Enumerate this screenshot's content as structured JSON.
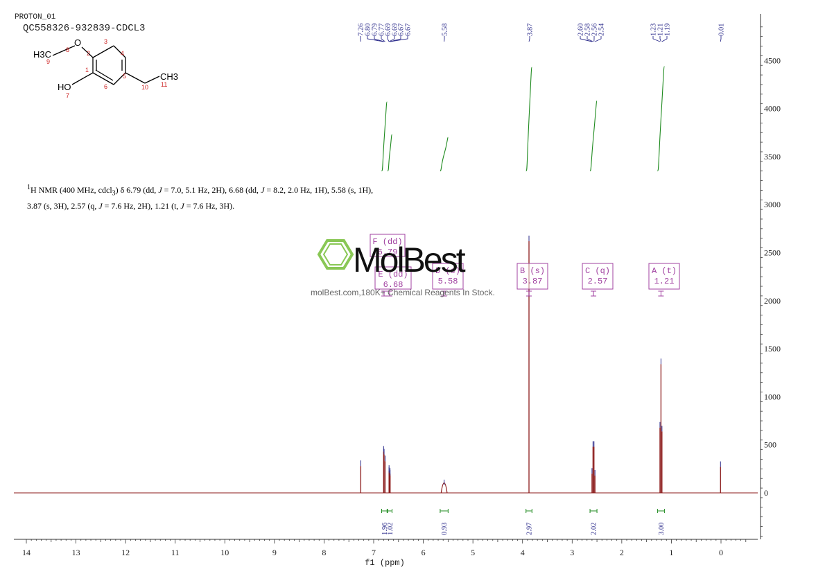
{
  "header": {
    "title": "PROTON_01",
    "sample": "QC558326-932839-CDCL3"
  },
  "molecule": {
    "atoms": {
      "ch3_left": "H3C",
      "o8": "O",
      "oh": "HO",
      "ch3_right": "CH3"
    },
    "numbers": [
      "1",
      "2",
      "3",
      "4",
      "5",
      "6",
      "7",
      "8",
      "9",
      "10",
      "11"
    ]
  },
  "nmr_description": {
    "line1_parts": [
      "1",
      "H NMR (400 MHz, cdcl",
      "3",
      ") δ 6.79 (dd, ",
      "J",
      " = 7.0, 5.1 Hz, 2H), 6.68 (dd, ",
      "J",
      " = 8.2, 2.0 Hz, 1H), 5.58 (s, 1H),"
    ],
    "line2_parts": [
      "3.87 (s, 3H), 2.57 (q, ",
      "J",
      " = 7.6 Hz, 2H), 1.21 (t, ",
      "J",
      " = 7.6 Hz, 3H)."
    ]
  },
  "watermark": {
    "brand": "MolBest",
    "tagline": "molBest.com,180K+ Chemical Reagents In Stock."
  },
  "chart_data": {
    "type": "line",
    "xlabel": "f1 (ppm)",
    "xlim": [
      14.3,
      -0.75
    ],
    "ylim": [
      -480,
      4900
    ],
    "x_ticks": [
      14,
      13,
      12,
      11,
      10,
      9,
      8,
      7,
      6,
      5,
      4,
      3,
      2,
      1,
      0
    ],
    "y_ticks": [
      0,
      500,
      1000,
      1500,
      2000,
      2500,
      3000,
      3500,
      4000,
      4500
    ],
    "colors": {
      "spectrum": "#8b1a1a",
      "peak_label": "#2a2a8a",
      "integral": "#1e8a1e",
      "multiplet_box": "#a040a0",
      "axis": "#333333"
    },
    "peaks": [
      {
        "ppm": 7.26,
        "height": 280
      },
      {
        "ppm": 6.8,
        "height": 430
      },
      {
        "ppm": 6.79,
        "height": 400
      },
      {
        "ppm": 6.77,
        "height": 330
      },
      {
        "ppm": 6.69,
        "height": 230
      },
      {
        "ppm": 6.69,
        "height": 210
      },
      {
        "ppm": 6.67,
        "height": 200
      },
      {
        "ppm": 6.67,
        "height": 180
      },
      {
        "ppm": 5.58,
        "height": 80,
        "width": 0.03
      },
      {
        "ppm": 3.87,
        "height": 2620
      },
      {
        "ppm": 2.6,
        "height": 200
      },
      {
        "ppm": 2.58,
        "height": 480
      },
      {
        "ppm": 2.56,
        "height": 480
      },
      {
        "ppm": 2.54,
        "height": 180
      },
      {
        "ppm": 1.23,
        "height": 680
      },
      {
        "ppm": 1.21,
        "height": 1340
      },
      {
        "ppm": 1.19,
        "height": 640
      },
      {
        "ppm": 0.01,
        "height": 270
      }
    ],
    "peak_labels": [
      "7.26",
      "6.80",
      "6.79",
      "6.77",
      "6.69",
      "6.69",
      "6.67",
      "6.67",
      "5.58",
      "3.87",
      "2.60",
      "2.58",
      "2.56",
      "2.54",
      "1.23",
      "1.21",
      "1.19",
      "0.01"
    ],
    "integrals": [
      {
        "from": 6.84,
        "to": 6.73,
        "value": "1.96",
        "y_start": 3350,
        "y_end": 4070
      },
      {
        "from": 6.72,
        "to": 6.63,
        "value": "1.02",
        "y_start": 3350,
        "y_end": 3730
      },
      {
        "from": 5.66,
        "to": 5.5,
        "value": "0.93",
        "y_start": 3350,
        "y_end": 3700
      },
      {
        "from": 3.93,
        "to": 3.81,
        "value": "2.97",
        "y_start": 3350,
        "y_end": 4430
      },
      {
        "from": 2.64,
        "to": 2.5,
        "value": "2.02",
        "y_start": 3350,
        "y_end": 4080
      },
      {
        "from": 1.28,
        "to": 1.14,
        "value": "3.00",
        "y_start": 3350,
        "y_end": 4440
      }
    ],
    "multiplets": [
      {
        "label": "F (dd)",
        "shift": "6.79",
        "ppm": 6.79
      },
      {
        "label": "E (dd)",
        "shift": "6.68",
        "ppm": 6.68
      },
      {
        "label": "D (s)",
        "shift": "5.58",
        "ppm": 5.58
      },
      {
        "label": "B (s)",
        "shift": "3.87",
        "ppm": 3.87
      },
      {
        "label": "C (q)",
        "shift": "2.57",
        "ppm": 2.57
      },
      {
        "label": "A (t)",
        "shift": "1.21",
        "ppm": 1.21
      }
    ]
  }
}
